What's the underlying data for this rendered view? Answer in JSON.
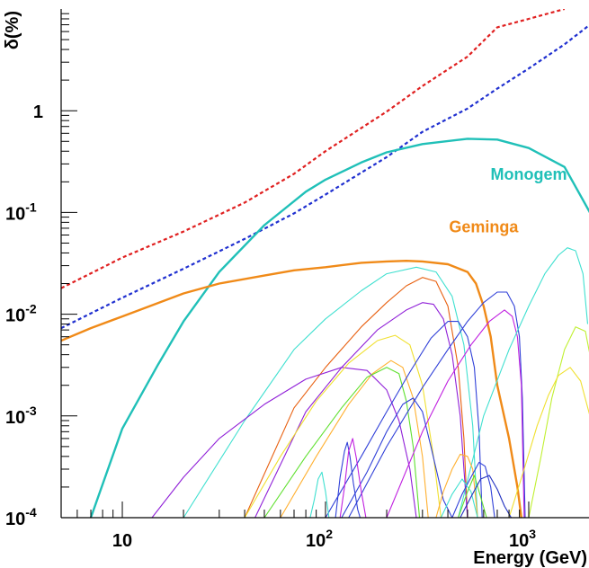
{
  "chart_data": {
    "type": "line",
    "title": "",
    "xlabel": "Energy (GeV)",
    "ylabel": "δ(%)",
    "xscale": "log",
    "yscale": "log",
    "xlim": [
      5,
      2000
    ],
    "ylim": [
      0.0001,
      10
    ],
    "grid": false,
    "x_tick_labels": [
      {
        "value": 10,
        "base": "10",
        "exp": ""
      },
      {
        "value": 100,
        "base": "10",
        "exp": "2"
      },
      {
        "value": 1000,
        "base": "10",
        "exp": "3"
      }
    ],
    "y_tick_labels": [
      {
        "value": 0.0001,
        "base": "10",
        "exp": "-4"
      },
      {
        "value": 0.001,
        "base": "10",
        "exp": "-3"
      },
      {
        "value": 0.01,
        "base": "10",
        "exp": "-2"
      },
      {
        "value": 0.1,
        "base": "10",
        "exp": "-1"
      },
      {
        "value": 1,
        "base": "1",
        "exp": ""
      }
    ],
    "annotations": [
      {
        "text": "Monogem",
        "color": "#20c0b8",
        "at": [
          1000,
          0.21
        ]
      },
      {
        "text": "Geminga",
        "color": "#f08a18",
        "at": [
          600,
          0.064
        ]
      }
    ],
    "series": [
      {
        "style": "dashed",
        "color": "#e02020",
        "width": 2.2,
        "x": [
          5,
          10,
          20,
          40,
          70,
          100,
          200,
          300,
          500,
          700,
          1000,
          1500
        ],
        "y": [
          0.018,
          0.036,
          0.065,
          0.125,
          0.24,
          0.4,
          0.98,
          1.75,
          3.4,
          6.6,
          8.0,
          10.0
        ]
      },
      {
        "style": "dashed",
        "color": "#2030d0",
        "width": 2.2,
        "x": [
          5,
          10,
          20,
          40,
          70,
          100,
          200,
          300,
          500,
          700,
          1000,
          1500,
          2000
        ],
        "y": [
          0.0073,
          0.0145,
          0.028,
          0.055,
          0.098,
          0.15,
          0.35,
          0.62,
          1.05,
          1.65,
          2.6,
          4.5,
          7.0
        ]
      },
      {
        "style": "solid",
        "color": "#20c0b8",
        "width": 2.4,
        "x": [
          7,
          10,
          15,
          20,
          30,
          50,
          80,
          100,
          150,
          200,
          300,
          500,
          700,
          1000,
          1500,
          2000
        ],
        "y": [
          0.0001,
          0.00075,
          0.0032,
          0.0085,
          0.026,
          0.075,
          0.16,
          0.21,
          0.31,
          0.39,
          0.47,
          0.53,
          0.52,
          0.43,
          0.28,
          0.1
        ]
      },
      {
        "style": "solid",
        "color": "#f08a18",
        "width": 2.4,
        "x": [
          5,
          7,
          10,
          20,
          30,
          50,
          70,
          100,
          150,
          200,
          250,
          300,
          400,
          500,
          550,
          600,
          650,
          700,
          800,
          880,
          920
        ],
        "y": [
          0.0055,
          0.0073,
          0.0095,
          0.016,
          0.02,
          0.024,
          0.027,
          0.029,
          0.032,
          0.033,
          0.0335,
          0.033,
          0.031,
          0.026,
          0.02,
          0.012,
          0.006,
          0.002,
          0.0006,
          0.0002,
          0.0001
        ]
      },
      {
        "style": "solid",
        "color": "#40e0d0",
        "width": 1.1,
        "x": [
          20,
          40,
          70,
          100,
          150,
          200,
          280,
          350,
          420,
          480,
          530,
          560
        ],
        "y": [
          0.0001,
          0.0009,
          0.0045,
          0.009,
          0.017,
          0.025,
          0.029,
          0.026,
          0.015,
          0.005,
          0.0008,
          0.0001
        ]
      },
      {
        "style": "solid",
        "color": "#e86010",
        "width": 1.1,
        "x": [
          40,
          70,
          100,
          150,
          200,
          250,
          300,
          350,
          400,
          450,
          480,
          500
        ],
        "y": [
          0.0001,
          0.0012,
          0.003,
          0.0075,
          0.013,
          0.019,
          0.023,
          0.021,
          0.012,
          0.003,
          0.0006,
          0.0001
        ]
      },
      {
        "style": "solid",
        "color": "#9020d8",
        "width": 1.1,
        "x": [
          45,
          80,
          120,
          180,
          250,
          300,
          340,
          380,
          420,
          460,
          480,
          500
        ],
        "y": [
          0.0001,
          0.0011,
          0.003,
          0.007,
          0.011,
          0.013,
          0.0125,
          0.009,
          0.004,
          0.001,
          0.0003,
          0.0001
        ]
      },
      {
        "style": "solid",
        "color": "#9020d8",
        "width": 1.1,
        "x": [
          14,
          20,
          30,
          50,
          80,
          120,
          160,
          200,
          230,
          260,
          280
        ],
        "y": [
          0.0001,
          0.00025,
          0.0006,
          0.0013,
          0.0023,
          0.003,
          0.0028,
          0.0018,
          0.0009,
          0.0003,
          0.0001
        ]
      },
      {
        "style": "solid",
        "color": "#f0e030",
        "width": 1.1,
        "x": [
          40,
          60,
          90,
          130,
          180,
          220,
          260,
          300,
          340,
          370
        ],
        "y": [
          0.0001,
          0.0004,
          0.0014,
          0.0033,
          0.0055,
          0.0062,
          0.005,
          0.002,
          0.0004,
          0.0001
        ]
      },
      {
        "style": "solid",
        "color": "#ffb030",
        "width": 1.1,
        "x": [
          60,
          90,
          130,
          170,
          210,
          240,
          270,
          300,
          320
        ],
        "y": [
          0.0001,
          0.0004,
          0.0013,
          0.0026,
          0.0035,
          0.003,
          0.0015,
          0.0004,
          0.0001
        ]
      },
      {
        "style": "solid",
        "color": "#60e030",
        "width": 1.1,
        "x": [
          50,
          80,
          120,
          160,
          200,
          230,
          250,
          270,
          290
        ],
        "y": [
          0.0001,
          0.0004,
          0.0012,
          0.0024,
          0.003,
          0.0026,
          0.0014,
          0.0005,
          0.0001
        ]
      },
      {
        "style": "solid",
        "color": "#3040d8",
        "width": 1.1,
        "x": [
          100,
          150,
          200,
          260,
          330,
          400,
          450,
          500,
          540,
          570,
          590
        ],
        "y": [
          0.0001,
          0.0004,
          0.0011,
          0.0027,
          0.0058,
          0.0085,
          0.0085,
          0.006,
          0.003,
          0.0007,
          0.0001
        ]
      },
      {
        "style": "solid",
        "color": "#3040d8",
        "width": 1.1,
        "x": [
          130,
          200,
          300,
          400,
          500,
          600,
          700,
          780,
          850,
          900,
          930,
          960
        ],
        "y": [
          0.0001,
          0.0005,
          0.0019,
          0.0045,
          0.0085,
          0.013,
          0.0165,
          0.0165,
          0.012,
          0.006,
          0.0015,
          0.0001
        ]
      },
      {
        "style": "solid",
        "color": "#c020e0",
        "width": 1.1,
        "x": [
          200,
          300,
          400,
          520,
          640,
          760,
          830,
          880,
          920,
          950
        ],
        "y": [
          0.0001,
          0.0007,
          0.0022,
          0.005,
          0.0085,
          0.011,
          0.0095,
          0.006,
          0.002,
          0.0001
        ]
      },
      {
        "style": "solid",
        "color": "#40e0d0",
        "width": 1.1,
        "x": [
          450,
          600,
          800,
          1000,
          1200,
          1400,
          1550,
          1700,
          1850,
          1950
        ],
        "y": [
          0.0001,
          0.001,
          0.0045,
          0.012,
          0.025,
          0.038,
          0.045,
          0.042,
          0.025,
          0.008
        ]
      },
      {
        "style": "solid",
        "color": "#c0f030",
        "width": 1.1,
        "x": [
          1000,
          1150,
          1300,
          1500,
          1700,
          1900,
          2000
        ],
        "y": [
          0.0001,
          0.0004,
          0.0015,
          0.0045,
          0.0075,
          0.0068,
          0.004
        ]
      },
      {
        "style": "solid",
        "color": "#f0e030",
        "width": 1.1,
        "x": [
          800,
          950,
          1100,
          1250,
          1400,
          1600,
          1800,
          2000
        ],
        "y": [
          0.0001,
          0.0003,
          0.0008,
          0.0016,
          0.0025,
          0.003,
          0.0022,
          0.001
        ]
      },
      {
        "style": "solid",
        "color": "#3040d8",
        "width": 1.1,
        "x": [
          120,
          160,
          200,
          240,
          270,
          300,
          330,
          380,
          420
        ],
        "y": [
          0.0001,
          0.00028,
          0.0007,
          0.0013,
          0.0015,
          0.0011,
          0.0005,
          0.00015,
          0.0001
        ]
      },
      {
        "style": "solid",
        "color": "#3040d8",
        "width": 1.1,
        "x": [
          112,
          118,
          124,
          128,
          132,
          137,
          144,
          148
        ],
        "y": [
          0.0001,
          0.00025,
          0.00045,
          0.00055,
          0.0004,
          0.00022,
          0.00012,
          0.0001
        ]
      },
      {
        "style": "solid",
        "color": "#c020e0",
        "width": 1.1,
        "x": [
          118,
          124,
          130,
          136,
          142,
          150,
          158
        ],
        "y": [
          0.0001,
          0.0002,
          0.00045,
          0.0006,
          0.00038,
          0.00018,
          0.0001
        ]
      },
      {
        "style": "solid",
        "color": "#40e0d0",
        "width": 1.1,
        "x": [
          84,
          88,
          92,
          96,
          100,
          104
        ],
        "y": [
          0.0001,
          0.00015,
          0.00024,
          0.00028,
          0.00018,
          0.0001
        ]
      },
      {
        "style": "solid",
        "color": "#ffb030",
        "width": 1.1,
        "x": [
          350,
          380,
          420,
          460,
          500,
          530,
          560
        ],
        "y": [
          0.0001,
          0.00018,
          0.0003,
          0.00042,
          0.0004,
          0.0003,
          0.0001
        ]
      },
      {
        "style": "solid",
        "color": "#3040d8",
        "width": 1.1,
        "x": [
          420,
          470,
          520,
          570,
          610,
          650,
          680
        ],
        "y": [
          0.0001,
          0.00017,
          0.00025,
          0.00035,
          0.00032,
          0.0002,
          0.0001
        ]
      },
      {
        "style": "solid",
        "color": "#40e0d0",
        "width": 1.1,
        "x": [
          370,
          420,
          470,
          520,
          560
        ],
        "y": [
          0.0001,
          0.00017,
          0.00024,
          0.00018,
          0.0001
        ]
      },
      {
        "style": "solid",
        "color": "#60e030",
        "width": 1.1,
        "x": [
          450,
          500,
          540,
          580,
          620
        ],
        "y": [
          0.0001,
          0.00018,
          0.00026,
          0.00016,
          0.0001
        ]
      },
      {
        "style": "solid",
        "color": "#2030c0",
        "width": 1.1,
        "x": [
          460,
          520,
          580,
          640,
          700,
          760,
          820
        ],
        "y": [
          0.0001,
          0.00016,
          0.00024,
          0.00026,
          0.00019,
          0.00013,
          0.0001
        ]
      }
    ]
  }
}
